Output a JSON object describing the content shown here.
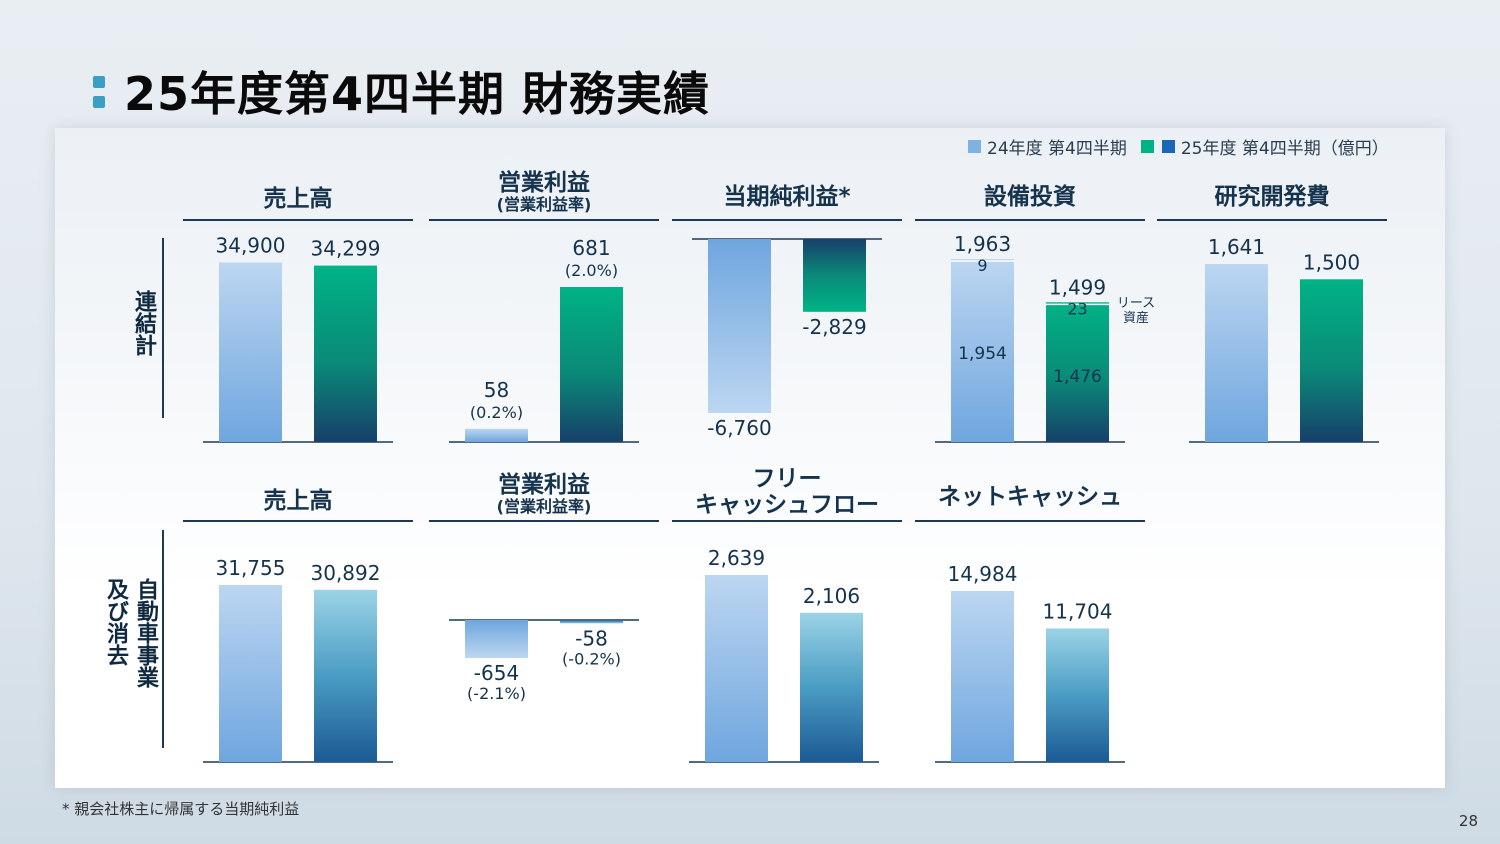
{
  "header": {
    "title": "25年度第4四半期 財務実績"
  },
  "legend": {
    "label_24": "24年度 第4四半期",
    "label_25": "25年度 第4四半期（億円）",
    "color_24": "#7fb2e3",
    "color_25a": "#00b386",
    "color_25b": "#1c66b5"
  },
  "rows": {
    "consolidated": "連結計",
    "auto_line1": "自動車事業",
    "auto_line2": "及び消去"
  },
  "headers": {
    "sales": "売上高",
    "op_income": "営業利益",
    "op_margin": "(営業利益率)",
    "net_income": "当期純利益*",
    "capex": "設備投資",
    "rnd": "研究開発費",
    "fcf_line1": "フリー",
    "fcf_line2": "キャッシュフロー",
    "net_cash": "ネットキャッシュ"
  },
  "annotations": {
    "lease_line1": "リース",
    "lease_line2": "資産"
  },
  "footnote": "* 親会社株主に帰属する当期純利益",
  "page_number": "28",
  "chart_data": [
    {
      "type": "bar",
      "group": "連結計",
      "title": "売上高",
      "categories": [
        "24年度 第4四半期",
        "25年度 第4四半期"
      ],
      "values": [
        34900,
        34299
      ],
      "labels": [
        "34,900",
        "34,299"
      ]
    },
    {
      "type": "bar",
      "group": "連結計",
      "title": "営業利益",
      "categories": [
        "24年度 第4四半期",
        "25年度 第4四半期"
      ],
      "values": [
        58,
        681
      ],
      "labels": [
        "58",
        "681"
      ],
      "margin_labels": [
        "(0.2%)",
        "(2.0%)"
      ]
    },
    {
      "type": "bar",
      "group": "連結計",
      "title": "当期純利益*",
      "categories": [
        "24年度 第4四半期",
        "25年度 第4四半期"
      ],
      "values": [
        -6760,
        -2829
      ],
      "labels": [
        "-6,760",
        "-2,829"
      ]
    },
    {
      "type": "stacked_bar",
      "group": "連結計",
      "title": "設備投資",
      "categories": [
        "24年度 第4四半期",
        "25年度 第4四半期"
      ],
      "values": [
        1963,
        1499
      ],
      "labels": [
        "1,963",
        "1,499"
      ],
      "series": [
        {
          "values": [
            1954,
            1476
          ],
          "labels": [
            "1,954",
            "1,476"
          ]
        },
        {
          "name": "リース資産",
          "values": [
            9,
            23
          ],
          "labels": [
            "9",
            "23"
          ]
        }
      ]
    },
    {
      "type": "bar",
      "group": "連結計",
      "title": "研究開発費",
      "categories": [
        "24年度 第4四半期",
        "25年度 第4四半期"
      ],
      "values": [
        1641,
        1500
      ],
      "labels": [
        "1,641",
        "1,500"
      ]
    },
    {
      "type": "bar",
      "group": "自動車事業及び消去",
      "title": "売上高",
      "categories": [
        "24年度 第4四半期",
        "25年度 第4四半期"
      ],
      "values": [
        31755,
        30892
      ],
      "labels": [
        "31,755",
        "30,892"
      ]
    },
    {
      "type": "bar",
      "group": "自動車事業及び消去",
      "title": "営業利益",
      "categories": [
        "24年度 第4四半期",
        "25年度 第4四半期"
      ],
      "values": [
        -654,
        -58
      ],
      "labels": [
        "-654",
        "-58"
      ],
      "margin_labels": [
        "(-2.1%)",
        "(-0.2%)"
      ]
    },
    {
      "type": "bar",
      "group": "自動車事業及び消去",
      "title": "フリーキャッシュフロー",
      "categories": [
        "24年度 第4四半期",
        "25年度 第4四半期"
      ],
      "values": [
        2639,
        2106
      ],
      "labels": [
        "2,639",
        "2,106"
      ]
    },
    {
      "type": "bar",
      "group": "自動車事業及び消去",
      "title": "ネットキャッシュ",
      "categories": [
        "24年度 第4四半期",
        "25年度 第4四半期"
      ],
      "values": [
        14984,
        11704
      ],
      "labels": [
        "14,984",
        "11,704"
      ]
    }
  ]
}
